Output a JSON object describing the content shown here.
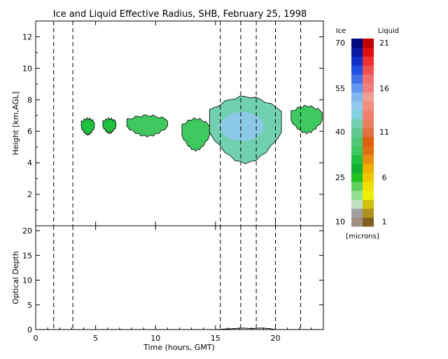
{
  "chart_data": [
    {
      "type": "heatmap",
      "title": "Ice and Liquid Effective Radius, SHB, February 25, 1998",
      "xlabel": "",
      "ylabel": "Height [km,AGL]",
      "xlim": [
        0,
        24
      ],
      "ylim": [
        0,
        13
      ],
      "x_ticks": [
        0,
        5,
        10,
        15,
        20
      ],
      "y_ticks": [
        2,
        4,
        6,
        8,
        10,
        12
      ],
      "dashed_time_markers": [
        1.5,
        3.1,
        15.4,
        17.1,
        18.4,
        20.0,
        22.1
      ],
      "cloud_regions": [
        {
          "t_start": 3.8,
          "t_end": 4.9,
          "z_bottom": 5.8,
          "z_top": 6.8,
          "radius_microns": 32
        },
        {
          "t_start": 5.6,
          "t_end": 6.7,
          "z_bottom": 5.9,
          "z_top": 6.8,
          "radius_microns": 32
        },
        {
          "t_start": 7.6,
          "t_end": 11.0,
          "z_bottom": 5.7,
          "z_top": 7.0,
          "radius_microns": 33
        },
        {
          "t_start": 12.2,
          "t_end": 14.5,
          "z_bottom": 4.8,
          "z_top": 6.8,
          "radius_microns": 34
        },
        {
          "t_start": 14.5,
          "t_end": 20.5,
          "z_bottom": 4.0,
          "z_top": 8.2,
          "radius_microns": 42
        },
        {
          "t_start": 21.3,
          "t_end": 23.9,
          "z_bottom": 5.9,
          "z_top": 7.6,
          "radius_microns": 33
        }
      ]
    },
    {
      "type": "line",
      "xlabel": "Time (hours, GMT)",
      "ylabel": "Optical Depth",
      "xlim": [
        0,
        24
      ],
      "ylim": [
        0,
        21
      ],
      "x_ticks": [
        0,
        5,
        10,
        15,
        20
      ],
      "y_ticks": [
        0,
        5,
        10,
        15,
        20
      ],
      "series": [
        {
          "x": [
            0,
            15.0,
            15.8,
            16.5,
            17.3,
            18.0,
            18.8,
            19.5,
            20.0,
            24
          ],
          "values": [
            0,
            0,
            0.1,
            0.2,
            0.3,
            0.2,
            0.3,
            0.2,
            0,
            0
          ]
        }
      ]
    }
  ],
  "colorbar": {
    "ice_label": "Ice",
    "liquid_label": "Liquid",
    "units_label": "[microns]",
    "ice_ticks": [
      "70",
      "55",
      "40",
      "25",
      "10"
    ],
    "liquid_ticks": [
      "21",
      "16",
      "11",
      "6",
      "1"
    ],
    "ice_colors": [
      "#a09080",
      "#a0a0a0",
      "#c0e0c0",
      "#90e090",
      "#60d060",
      "#20c020",
      "#10b030",
      "#20c040",
      "#40c860",
      "#50c878",
      "#60c890",
      "#70d0b0",
      "#80d0e0",
      "#90c8f0",
      "#80b8f0",
      "#6098f0",
      "#4070e8",
      "#2050e0",
      "#1030c8",
      "#0818a0",
      "#000880"
    ],
    "liquid_colors": [
      "#806020",
      "#b09020",
      "#d0c010",
      "#f0f000",
      "#f0e000",
      "#f0c800",
      "#f0b000",
      "#e89010",
      "#e07010",
      "#e06010",
      "#e07040",
      "#e88060",
      "#f08070",
      "#f09080",
      "#f0a090",
      "#f08080",
      "#f07070",
      "#f05050",
      "#f03030",
      "#e01010",
      "#c00000"
    ]
  }
}
